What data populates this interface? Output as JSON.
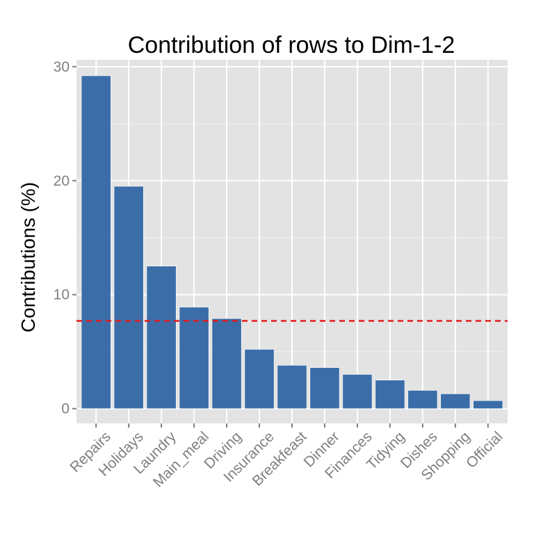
{
  "chart_data": {
    "type": "bar",
    "title": "Contribution of rows to Dim-1-2",
    "xlabel": "",
    "ylabel": "Contributions (%)",
    "categories": [
      "Repairs",
      "Holidays",
      "Laundry",
      "Main_meal",
      "Driving",
      "Insurance",
      "Breakfeast",
      "Dinner",
      "Finances",
      "Tidying",
      "Dishes",
      "Shopping",
      "Official"
    ],
    "values": [
      29.2,
      19.5,
      12.5,
      8.9,
      7.9,
      5.2,
      3.8,
      3.6,
      3.0,
      2.5,
      1.6,
      1.3,
      0.7
    ],
    "ylim": [
      -1.3,
      30.6
    ],
    "yticks": [
      0,
      10,
      20,
      30
    ],
    "ytick_labels": [
      "0",
      "10",
      "20",
      "30"
    ],
    "reference_line": {
      "value": 7.7,
      "style": "dashed"
    },
    "grid": true,
    "colors": {
      "bar": "#3b6ea8",
      "reference_line": "#e41a1c",
      "panel_background": "#e3e3e3",
      "grid": "#ffffff",
      "tick_label": "#7f7f7f"
    }
  }
}
